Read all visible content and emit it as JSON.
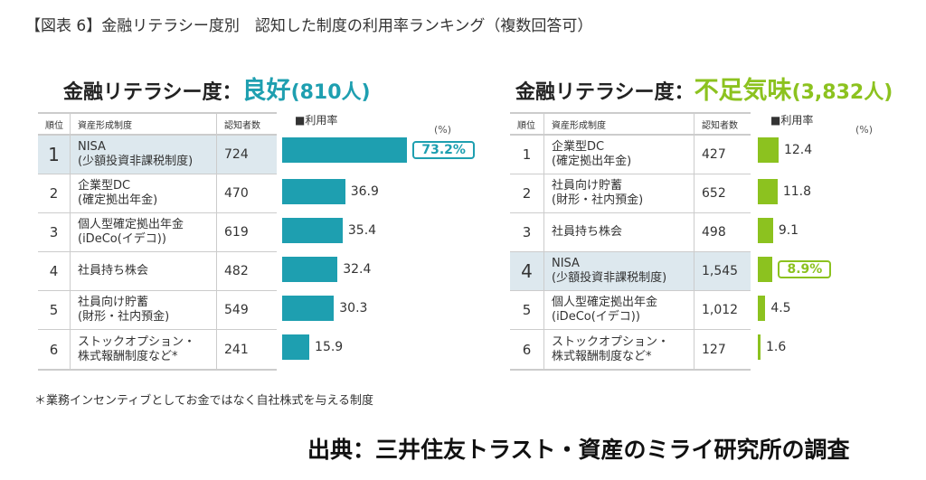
{
  "title": "【図表 6】金融リテラシー度別　認知した制度の利用率ランキング（複数回答可）",
  "footnote": "＊業務インセンティブとしてお金ではなく自社株式を与える制度",
  "source": "出典：三井住友トラスト・資産のミライ研究所の調査",
  "chart_data": [
    {
      "type": "table",
      "prefix": "金融リテラシー度：",
      "level": "良好",
      "count_label": "(810人)",
      "color": "#1e9fb0",
      "headers": [
        "順位",
        "資産形成制度",
        "認知者数"
      ],
      "legend": "■利用率",
      "unit": "(%)",
      "highlight_rank": "1",
      "rows": [
        {
          "rank": "1",
          "name": [
            "NISA",
            "(少額投資非課税制度)"
          ],
          "aware": "724",
          "rate": 73.2,
          "rate_label": "73.2%"
        },
        {
          "rank": "2",
          "name": [
            "企業型DC",
            "(確定拠出年金)"
          ],
          "aware": "470",
          "rate": 36.9,
          "rate_label": "36.9"
        },
        {
          "rank": "3",
          "name": [
            "個人型確定拠出年金",
            "(iDeCo(イデコ))"
          ],
          "aware": "619",
          "rate": 35.4,
          "rate_label": "35.4"
        },
        {
          "rank": "4",
          "name": [
            "社員持ち株会"
          ],
          "aware": "482",
          "rate": 32.4,
          "rate_label": "32.4"
        },
        {
          "rank": "5",
          "name": [
            "社員向け貯蓄",
            "(財形・社内預金)"
          ],
          "aware": "549",
          "rate": 30.3,
          "rate_label": "30.3"
        },
        {
          "rank": "6",
          "name": [
            "ストックオプション・",
            "株式報酬制度など*"
          ],
          "aware": "241",
          "rate": 15.9,
          "rate_label": "15.9"
        }
      ]
    },
    {
      "type": "table",
      "prefix": "金融リテラシー度：",
      "level": "不足気味",
      "count_label": "(3,832人)",
      "color": "#8cc21f",
      "headers": [
        "順位",
        "資産形成制度",
        "認知者数"
      ],
      "legend": "■利用率",
      "unit": "(%)",
      "highlight_rank": "4",
      "rows": [
        {
          "rank": "1",
          "name": [
            "企業型DC",
            "(確定拠出年金)"
          ],
          "aware": "427",
          "rate": 12.4,
          "rate_label": "12.4"
        },
        {
          "rank": "2",
          "name": [
            "社員向け貯蓄",
            "(財形・社内預金)"
          ],
          "aware": "652",
          "rate": 11.8,
          "rate_label": "11.8"
        },
        {
          "rank": "3",
          "name": [
            "社員持ち株会"
          ],
          "aware": "498",
          "rate": 9.1,
          "rate_label": "9.1"
        },
        {
          "rank": "4",
          "name": [
            "NISA",
            "(少額投資非課税制度)"
          ],
          "aware": "1,545",
          "rate": 8.9,
          "rate_label": "8.9%"
        },
        {
          "rank": "5",
          "name": [
            "個人型確定拠出年金",
            "(iDeCo(イデコ))"
          ],
          "aware": "1,012",
          "rate": 4.5,
          "rate_label": "4.5"
        },
        {
          "rank": "6",
          "name": [
            "ストックオプション・",
            "株式報酬制度など*"
          ],
          "aware": "127",
          "rate": 1.6,
          "rate_label": "1.6"
        }
      ]
    }
  ]
}
